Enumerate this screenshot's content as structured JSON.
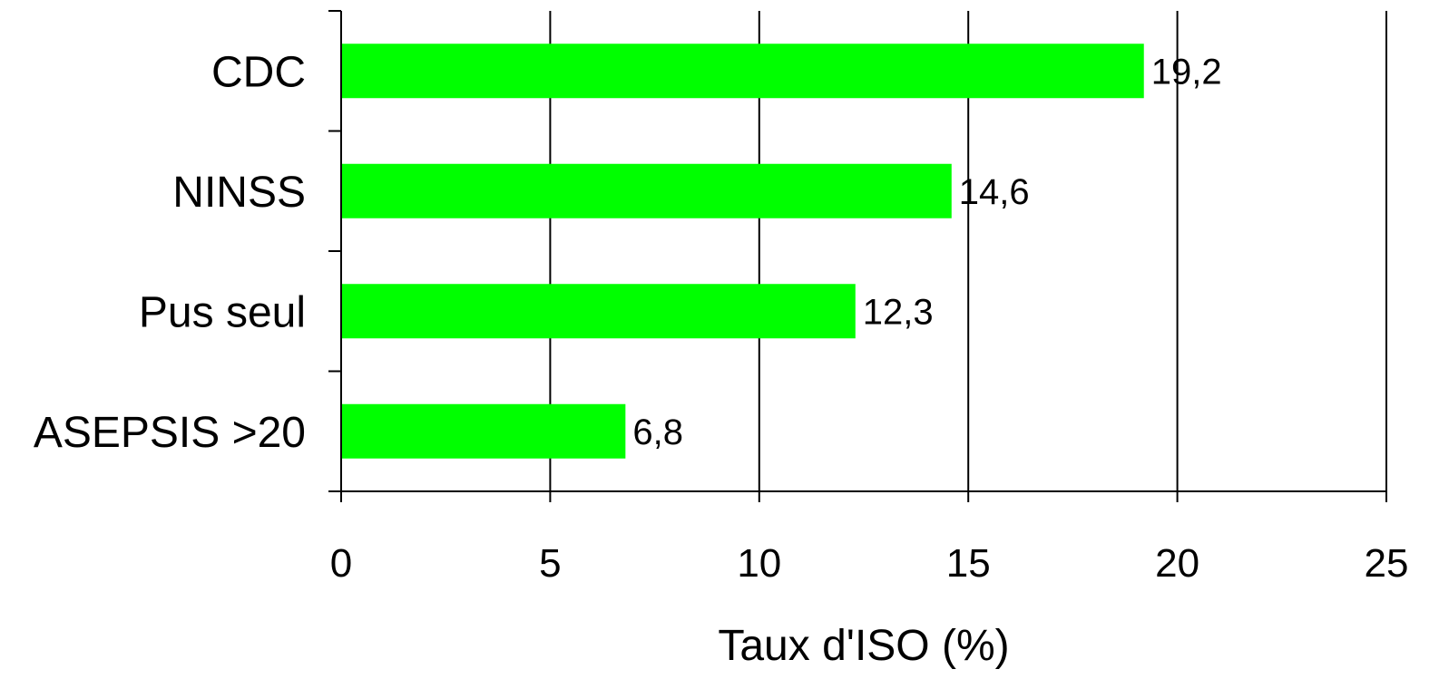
{
  "chart_data": {
    "type": "bar",
    "orientation": "horizontal",
    "title": "",
    "xlabel": "Taux d'ISO (%)",
    "ylabel": "",
    "categories": [
      "CDC",
      "NINSS",
      "Pus seul",
      "ASEPSIS >20"
    ],
    "values": [
      19.2,
      14.6,
      12.3,
      6.8
    ],
    "value_labels": [
      "19,2",
      "14,6",
      "12,3",
      "6,8"
    ],
    "xlim": [
      0,
      25
    ],
    "xticks": [
      0,
      5,
      10,
      15,
      20,
      25
    ],
    "xtick_labels": [
      "0",
      "5",
      "10",
      "15",
      "20",
      "25"
    ],
    "grid": "vertical",
    "legend": "none",
    "bar_color": "#00ff00",
    "grid_color": "#000000"
  }
}
